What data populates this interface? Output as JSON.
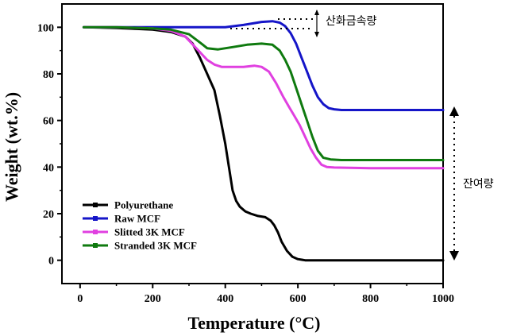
{
  "chart_data": {
    "type": "line",
    "xlabel": "Temperature",
    "xlabel_unit": "(°C)",
    "ylabel": "Weight (wt.%)",
    "xlim": [
      -50,
      1000
    ],
    "ylim": [
      -10,
      110
    ],
    "x_ticks": [
      0,
      200,
      400,
      600,
      800,
      1000
    ],
    "y_ticks": [
      0,
      20,
      40,
      60,
      80,
      100
    ],
    "grid": false,
    "legend_position": "bottom-left",
    "series": [
      {
        "name": "Polyurethane",
        "color": "#000000",
        "x": [
          10,
          100,
          200,
          250,
          290,
          310,
          330,
          350,
          370,
          385,
          400,
          410,
          420,
          430,
          440,
          455,
          470,
          490,
          510,
          525,
          535,
          545,
          555,
          570,
          585,
          600,
          620,
          650,
          700,
          800,
          900,
          1000
        ],
        "y": [
          100,
          99.7,
          99,
          98,
          96,
          93,
          87,
          80,
          73,
          62,
          50,
          40,
          30,
          25.5,
          23,
          21,
          20,
          19,
          18.5,
          17,
          15,
          12,
          8,
          4,
          1.5,
          0.5,
          0,
          0,
          0,
          0,
          0,
          0
        ]
      },
      {
        "name": "Raw MCF",
        "color": "#1515c8",
        "x": [
          10,
          100,
          200,
          300,
          400,
          450,
          500,
          530,
          550,
          565,
          580,
          595,
          610,
          625,
          640,
          655,
          670,
          685,
          700,
          720,
          800,
          900,
          1000
        ],
        "y": [
          100,
          100,
          100,
          100,
          100,
          101,
          102.3,
          102.6,
          102,
          100.5,
          97.5,
          93,
          87,
          81,
          75,
          70,
          67,
          65.3,
          64.8,
          64.5,
          64.5,
          64.5,
          64.5
        ]
      },
      {
        "name": "Slitted 3K MCF",
        "color": "#e040e0",
        "x": [
          10,
          100,
          200,
          250,
          290,
          320,
          350,
          370,
          390,
          420,
          450,
          480,
          500,
          520,
          540,
          560,
          575,
          590,
          605,
          620,
          635,
          650,
          665,
          680,
          700,
          800,
          900,
          1000
        ],
        "y": [
          100,
          100,
          99.5,
          98.5,
          96,
          91,
          86,
          84,
          83,
          83,
          83,
          83.5,
          83,
          81,
          76,
          70,
          66,
          62,
          58,
          53,
          48,
          44,
          41,
          40,
          39.8,
          39.5,
          39.5,
          39.5
        ]
      },
      {
        "name": "Stranded 3K MCF",
        "color": "#0f7a0f",
        "x": [
          10,
          100,
          200,
          250,
          300,
          330,
          350,
          380,
          420,
          460,
          500,
          530,
          550,
          565,
          580,
          595,
          610,
          625,
          640,
          655,
          670,
          690,
          720,
          800,
          900,
          1000
        ],
        "y": [
          100,
          100,
          99.5,
          99,
          97,
          93.5,
          91,
          90.5,
          91.5,
          92.5,
          93,
          92.5,
          90,
          86,
          81,
          74,
          67,
          60,
          53,
          47,
          44,
          43.3,
          43,
          43,
          43,
          43
        ]
      }
    ],
    "annotations": {
      "metal_content_label": "산화금속량",
      "residue_label": "잔여량"
    }
  }
}
